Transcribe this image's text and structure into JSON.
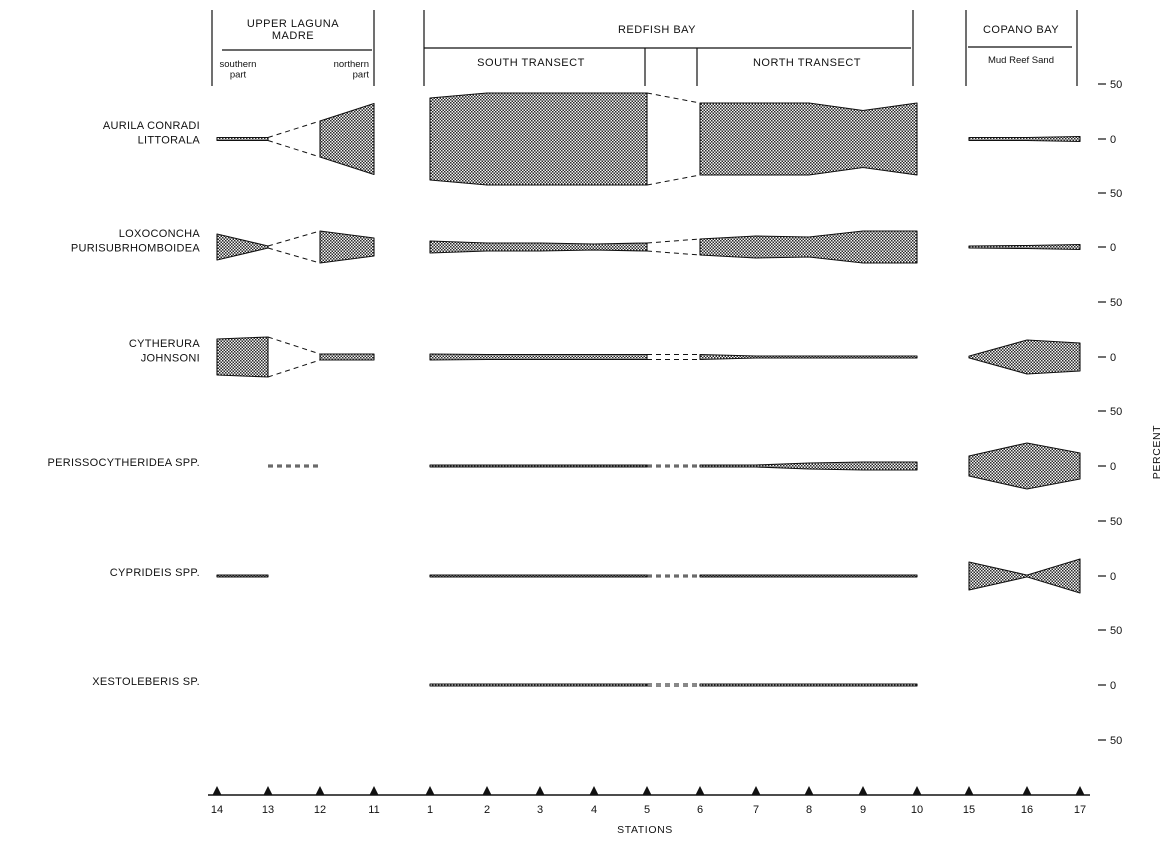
{
  "chart_data": {
    "type": "area",
    "title": "",
    "xlabel": "STATIONS",
    "ylabel": "PERCENT",
    "headers": {
      "upper_laguna_madre": "UPPER LAGUNA\nMADRE",
      "southern_part": "southern\npart",
      "northern_part": "northern\npart",
      "redfish_bay": "REDFISH BAY",
      "south_transect": "SOUTH TRANSECT",
      "north_transect": "NORTH TRANSECT",
      "copano_bay": "COPANO BAY",
      "copano_sub": "Mud Reef Sand"
    },
    "stations": [
      "14",
      "13",
      "12",
      "11",
      "1",
      "2",
      "3",
      "4",
      "5",
      "6",
      "7",
      "8",
      "9",
      "10",
      "15",
      "16",
      "17"
    ],
    "scale_ticks": [
      "50",
      "0",
      "50",
      "0",
      "50",
      "0",
      "50",
      "0",
      "50",
      "0",
      "50",
      "0",
      "50"
    ],
    "series": [
      {
        "name": "AURILA CONRADI\nLITTORALA",
        "values": {
          "14": 3,
          "13": 3,
          "12": 36,
          "11": 71,
          "1": 82,
          "2": 92,
          "3": 92,
          "4": 92,
          "5": 92,
          "6": 72,
          "7": 72,
          "8": 72,
          "9": 57,
          "10": 72,
          "15": 3,
          "16": 3,
          "17": 5
        }
      },
      {
        "name": "LOXOCONCHA\nPURISUBRHOMBOIDEA",
        "values": {
          "14": 26,
          "13": 2,
          "12": 32,
          "11": 18,
          "1": 12,
          "2": 8,
          "3": 8,
          "4": 6,
          "5": 8,
          "6": 16,
          "7": 22,
          "8": 20,
          "9": 32,
          "10": 32,
          "15": 2,
          "16": 3,
          "17": 5
        }
      },
      {
        "name": "CYTHERURA\nJOHNSONI",
        "values": {
          "14": 36,
          "13": 40,
          "12": 6,
          "11": 6,
          "1": 6,
          "2": 5,
          "3": 5,
          "4": 5,
          "5": 5,
          "6": 5,
          "7": 2,
          "8": 2,
          "9": 2,
          "10": 2,
          "15": 0,
          "16": 34,
          "17": 28
        }
      },
      {
        "name": "PERISSOCYTHERIDEA SPP.",
        "values": {
          "13": 0,
          "12": 0,
          "1": 1,
          "2": 1,
          "3": 1,
          "4": 1,
          "5": 1,
          "6": 1,
          "7": 2,
          "8": 6,
          "9": 8,
          "10": 8,
          "15": 20,
          "16": 46,
          "17": 26
        }
      },
      {
        "name": "CYPRIDEIS SPP.",
        "values": {
          "14": 1,
          "13": 1,
          "1": 1,
          "2": 1,
          "3": 1,
          "5": 0,
          "6": 1,
          "7": 1,
          "8": 1,
          "9": 1,
          "10": 1,
          "15": 28,
          "16": 1,
          "17": 34
        }
      },
      {
        "name": "XESTOLEBERIS SP.",
        "values": {
          "1": 2,
          "2": 2,
          "3": 2,
          "4": 2,
          "5": 2,
          "6": 2,
          "7": 2,
          "8": 2,
          "9": 2,
          "10": 2
        }
      }
    ]
  }
}
